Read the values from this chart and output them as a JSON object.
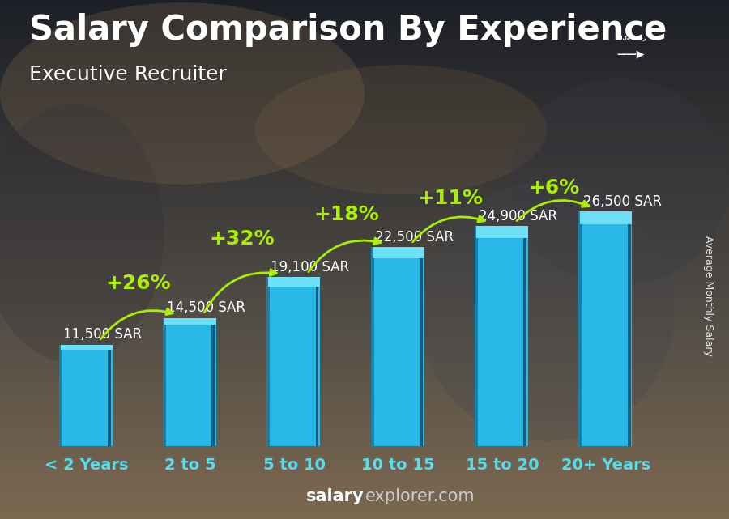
{
  "title": "Salary Comparison By Experience",
  "subtitle": "Executive Recruiter",
  "ylabel": "Average Monthly Salary",
  "footer_bold": "salary",
  "footer_normal": "explorer.com",
  "categories": [
    "< 2 Years",
    "2 to 5",
    "5 to 10",
    "10 to 15",
    "15 to 20",
    "20+ Years"
  ],
  "values": [
    11500,
    14500,
    19100,
    22500,
    24900,
    26500
  ],
  "labels": [
    "11,500 SAR",
    "14,500 SAR",
    "19,100 SAR",
    "22,500 SAR",
    "24,900 SAR",
    "26,500 SAR"
  ],
  "pct_changes": [
    "+26%",
    "+32%",
    "+18%",
    "+11%",
    "+6%"
  ],
  "bar_color_main": "#29b8e8",
  "bar_color_light": "#6de0f8",
  "bar_color_dark": "#1580aa",
  "bar_color_right": "#0e6080",
  "pct_color": "#aaee00",
  "title_color": "#ffffff",
  "subtitle_color": "#ffffff",
  "label_color": "#ffffff",
  "tick_color": "#55ddee",
  "footer_bold_color": "#ffffff",
  "footer_normal_color": "#cccccc",
  "bg_top": "#b8956a",
  "bg_bottom": "#1a1a2e",
  "ylim": [
    0,
    34000
  ],
  "title_fontsize": 30,
  "subtitle_fontsize": 18,
  "val_label_fontsize": 12,
  "pct_fontsize": 18,
  "xtick_fontsize": 14,
  "ylabel_fontsize": 9,
  "footer_fontsize": 15,
  "bar_width": 0.5,
  "pct_text_offsets": [
    2800,
    3200,
    2600,
    2000,
    1600
  ],
  "arrow_rad": -0.35
}
